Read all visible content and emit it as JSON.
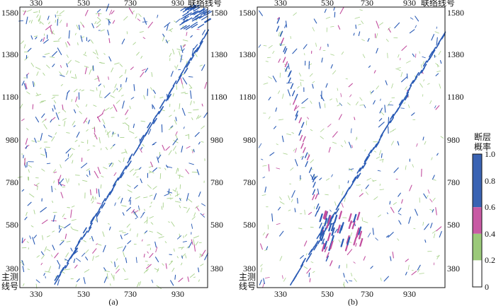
{
  "panels": [
    {
      "id": "a",
      "caption": "(a)",
      "x_ticks": [
        "330",
        "530",
        "730",
        "930"
      ],
      "y_ticks": [
        "1580",
        "1380",
        "1180",
        "980",
        "780",
        "580",
        "380"
      ],
      "x_label": "联络线号",
      "y_label_line1": "主测",
      "y_label_line2": "线号"
    },
    {
      "id": "b",
      "caption": "(b)",
      "x_ticks": [
        "330",
        "530",
        "730",
        "930"
      ],
      "y_ticks": [
        "1580",
        "1380",
        "1180",
        "980",
        "780",
        "580",
        "380"
      ],
      "x_label": "联络线号",
      "y_label_line1": "主测",
      "y_label_line2": "线号"
    }
  ],
  "colorbar": {
    "title_line1": "断层",
    "title_line2": "概率",
    "ticks": [
      "1.0",
      "0.8",
      "0.6",
      "0.4",
      "0.2",
      "0"
    ],
    "segments": [
      {
        "from": 0.6,
        "to": 1.0,
        "color": "#3a63b3"
      },
      {
        "from": 0.4,
        "to": 0.6,
        "color": "#c85aa4"
      },
      {
        "from": 0.2,
        "to": 0.4,
        "color": "#9bc97a"
      },
      {
        "from": 0.0,
        "to": 0.2,
        "color": "#ffffff"
      }
    ]
  },
  "colors": {
    "blue": "#2a5bb5",
    "magenta": "#c24e9f",
    "green": "#a8d28c"
  }
}
